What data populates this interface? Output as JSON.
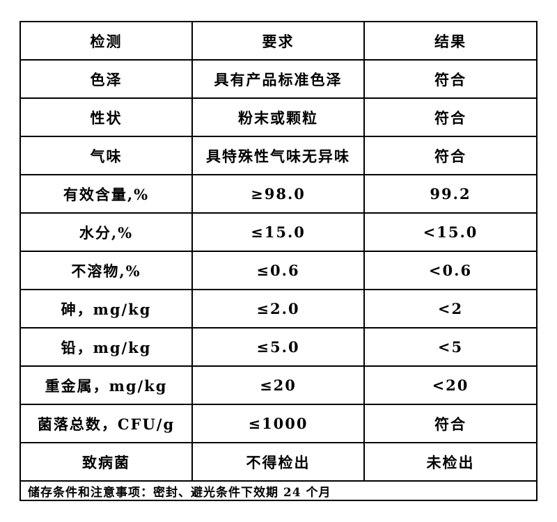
{
  "table": {
    "columns": [
      "检测",
      "要求",
      "结果"
    ],
    "rows": [
      {
        "test": "色泽",
        "requirement": "具有产品标准色泽",
        "result": "符合"
      },
      {
        "test": "性状",
        "requirement": "粉末或颗粒",
        "result": "符合"
      },
      {
        "test": "气味",
        "requirement": "具特殊性气味无异味",
        "result": "符合"
      },
      {
        "test": "有效含量,%",
        "requirement": "≥98.0",
        "result": "99.2"
      },
      {
        "test": "水分,%",
        "requirement": "≤15.0",
        "result": "<15.0"
      },
      {
        "test": "不溶物,%",
        "requirement": "≤0.6",
        "result": "<0.6"
      },
      {
        "test": "砷，mg/kg",
        "requirement": "≤2.0",
        "result": "<2"
      },
      {
        "test": "铅，mg/kg",
        "requirement": "≤5.0",
        "result": "<5"
      },
      {
        "test": "重金属，mg/kg",
        "requirement": "≤20",
        "result": "<20"
      },
      {
        "test": "菌落总数，CFU/g",
        "requirement": "≤1000",
        "result": "符合"
      },
      {
        "test": "致病菌",
        "requirement": "不得检出",
        "result": "未检出"
      }
    ],
    "footer_note": "储存条件和注意事项：密封、避光条件下效期 24 个月"
  }
}
